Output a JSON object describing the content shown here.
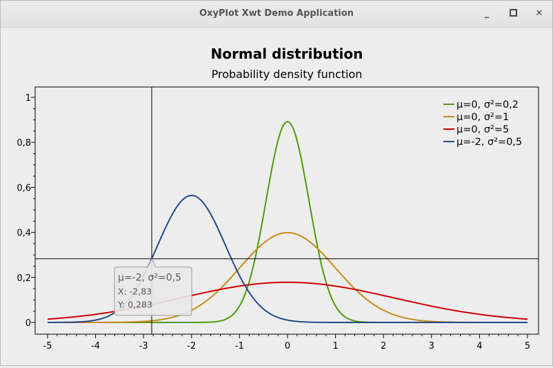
{
  "window": {
    "title": "OxyPlot Xwt Demo Application",
    "minimize_icon": "minimize-icon",
    "maximize_icon": "maximize-icon",
    "close_icon": "close-icon"
  },
  "chart_data": {
    "type": "line",
    "title": "Normal distribution",
    "subtitle": "Probability density function",
    "xlabel": "",
    "ylabel": "",
    "xlim": [
      -5,
      5
    ],
    "ylim": [
      0,
      1
    ],
    "x_ticks": [
      -5,
      -4,
      -3,
      -2,
      -1,
      0,
      1,
      2,
      3,
      4,
      5
    ],
    "x_tick_labels": [
      "-5",
      "-4",
      "-3",
      "-2",
      "-1",
      "0",
      "1",
      "2",
      "3",
      "4",
      "5"
    ],
    "y_ticks": [
      0,
      0.2,
      0.4,
      0.6,
      0.8,
      1
    ],
    "y_tick_labels": [
      "0",
      "0,2",
      "0,4",
      "0,6",
      "0,8",
      "1"
    ],
    "grid": false,
    "legend_position": "top-right",
    "series": [
      {
        "name": "μ=0, σ²=0,2",
        "mean": 0,
        "variance": 0.2,
        "color": "#4e9a06"
      },
      {
        "name": "μ=0, σ²=1",
        "mean": 0,
        "variance": 1,
        "color": "#c88a1a"
      },
      {
        "name": "μ=0, σ²=5",
        "mean": 0,
        "variance": 5,
        "color": "#cc0000"
      },
      {
        "name": "μ=-2, σ²=0,5",
        "mean": -2,
        "variance": 0.5,
        "color": "#204a87"
      }
    ],
    "tracker": {
      "series": "μ=-2, σ²=0,5",
      "x": -2.83,
      "y": 0.283,
      "label": "μ=-2, σ²=0,5",
      "x_text": "X: -2,83",
      "y_text": "Y: 0,283"
    }
  }
}
